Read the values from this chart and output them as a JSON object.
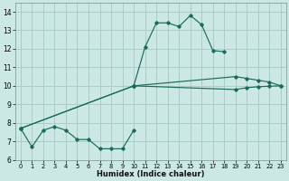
{
  "xlabel": "Humidex (Indice chaleur)",
  "bg_color": "#cce8e4",
  "grid_color": "#aaccc8",
  "line_color": "#1a6b5c",
  "xlim": [
    -0.5,
    23.5
  ],
  "ylim": [
    6,
    14.5
  ],
  "xticks": [
    0,
    1,
    2,
    3,
    4,
    5,
    6,
    7,
    8,
    9,
    10,
    11,
    12,
    13,
    14,
    15,
    16,
    17,
    18,
    19,
    20,
    21,
    22,
    23
  ],
  "yticks": [
    6,
    7,
    8,
    9,
    10,
    11,
    12,
    13,
    14
  ],
  "series": [
    {
      "x": [
        0,
        1,
        2,
        3,
        4,
        5,
        6,
        7,
        8,
        9,
        10
      ],
      "y": [
        7.7,
        6.7,
        7.6,
        7.8,
        7.6,
        7.1,
        7.1,
        6.6,
        6.6,
        6.6,
        7.6
      ]
    },
    {
      "x": [
        10,
        11,
        12,
        13,
        14,
        15,
        16,
        17,
        18
      ],
      "y": [
        10.0,
        12.1,
        13.4,
        13.4,
        13.2,
        13.8,
        13.3,
        11.9,
        11.85
      ]
    },
    {
      "x": [
        0,
        10,
        19,
        20,
        21,
        22,
        23
      ],
      "y": [
        7.7,
        10.0,
        9.8,
        9.9,
        9.95,
        9.98,
        10.0
      ]
    },
    {
      "x": [
        0,
        10,
        19,
        20,
        21,
        22,
        23
      ],
      "y": [
        7.7,
        10.0,
        10.5,
        10.4,
        10.3,
        10.2,
        10.0
      ]
    }
  ]
}
